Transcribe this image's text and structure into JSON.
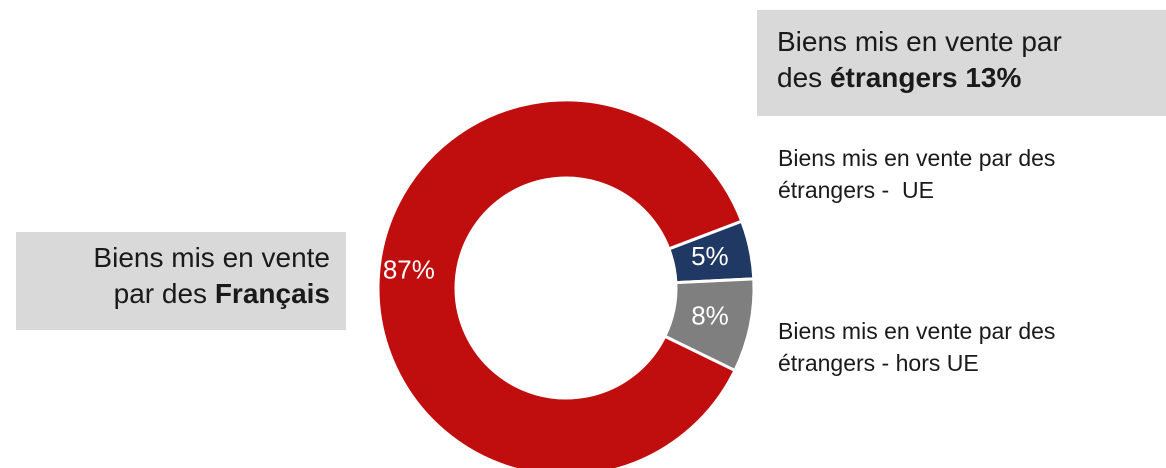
{
  "chart_data": {
    "type": "pie",
    "donut": true,
    "categories": [
      {
        "text": "Biens mis en vente par des",
        "bold": "Français"
      },
      {
        "text": "Biens mis en vente par des étrangers -  UE"
      },
      {
        "text": "Biens mis en vente par des étrangers - hors UE"
      }
    ],
    "group_label": {
      "text": "Biens mis en vente par des",
      "bold": "étrangers 13%"
    },
    "values": [
      87,
      5,
      8
    ],
    "value_labels": [
      "87%",
      "5%",
      "8%"
    ],
    "colors": [
      "#c00d0d",
      "#1f3864",
      "#7f7f7f"
    ]
  }
}
